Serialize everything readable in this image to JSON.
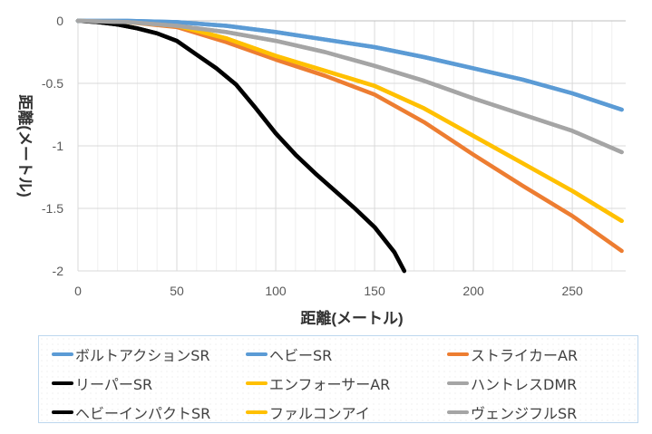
{
  "chart_data": {
    "type": "line",
    "title": "",
    "xlabel": "距離(メートル)",
    "ylabel": "距離(メートル)",
    "xlim": [
      0,
      277
    ],
    "ylim": [
      -2,
      0
    ],
    "xticks": [
      "0",
      "50",
      "100",
      "150",
      "200",
      "250"
    ],
    "yticks": [
      "0",
      "-0.5",
      "-1",
      "-1.5",
      "-2"
    ],
    "grid": true,
    "legend_position": "bottom",
    "series": [
      {
        "name": "ボルトアクションSR",
        "color": "#5b9bd5",
        "x": [
          0,
          25,
          50,
          75,
          100,
          125,
          150,
          175,
          200,
          225,
          250,
          275
        ],
        "y": [
          0,
          0,
          -0.01,
          -0.04,
          -0.09,
          -0.15,
          -0.21,
          -0.29,
          -0.38,
          -0.47,
          -0.58,
          -0.71
        ]
      },
      {
        "name": "ヘビーSR",
        "color": "#5b9bd5",
        "x": [
          0,
          25,
          50,
          75,
          100,
          125,
          150,
          175,
          200,
          225,
          250,
          275
        ],
        "y": [
          0,
          0,
          -0.01,
          -0.04,
          -0.09,
          -0.15,
          -0.21,
          -0.29,
          -0.38,
          -0.47,
          -0.58,
          -0.71
        ]
      },
      {
        "name": "ストライカーAR",
        "color": "#ed7d31",
        "x": [
          0,
          25,
          50,
          75,
          100,
          125,
          150,
          175,
          200,
          225,
          250,
          275
        ],
        "y": [
          0,
          -0.01,
          -0.05,
          -0.17,
          -0.31,
          -0.44,
          -0.59,
          -0.81,
          -1.07,
          -1.32,
          -1.56,
          -1.84
        ]
      },
      {
        "name": "リーパーSR",
        "color": "#000000",
        "x": [
          0,
          10,
          20,
          30,
          40,
          50,
          60,
          70,
          80,
          90,
          100,
          110,
          120,
          130,
          140,
          150,
          160,
          165
        ],
        "y": [
          0,
          -0.01,
          -0.03,
          -0.06,
          -0.1,
          -0.16,
          -0.27,
          -0.38,
          -0.51,
          -0.7,
          -0.9,
          -1.07,
          -1.22,
          -1.36,
          -1.5,
          -1.65,
          -1.85,
          -2.0
        ]
      },
      {
        "name": "エンフォーサーAR",
        "color": "#ffc000",
        "x": [
          0,
          25,
          50,
          75,
          100,
          125,
          150,
          175,
          200,
          225,
          250,
          275
        ],
        "y": [
          0,
          -0.01,
          -0.04,
          -0.14,
          -0.28,
          -0.4,
          -0.52,
          -0.7,
          -0.92,
          -1.14,
          -1.36,
          -1.6
        ]
      },
      {
        "name": "ハントレスDMR",
        "color": "#a5a5a5",
        "x": [
          0,
          25,
          50,
          75,
          100,
          125,
          150,
          175,
          200,
          225,
          250,
          275
        ],
        "y": [
          0,
          -0.01,
          -0.04,
          -0.09,
          -0.16,
          -0.25,
          -0.36,
          -0.48,
          -0.62,
          -0.75,
          -0.88,
          -1.05
        ]
      },
      {
        "name": "ヘビーインパクトSR",
        "color": "#000000",
        "x": [
          0,
          10,
          20,
          30,
          40,
          50,
          60,
          70,
          80,
          90,
          100,
          110,
          120,
          130,
          140,
          150,
          160,
          165
        ],
        "y": [
          0,
          -0.01,
          -0.03,
          -0.06,
          -0.1,
          -0.16,
          -0.27,
          -0.38,
          -0.51,
          -0.7,
          -0.9,
          -1.07,
          -1.22,
          -1.36,
          -1.5,
          -1.65,
          -1.85,
          -2.0
        ]
      },
      {
        "name": "ファルコンアイ",
        "color": "#ffc000",
        "x": [
          0,
          25,
          50,
          75,
          100,
          125,
          150,
          175,
          200,
          225,
          250,
          275
        ],
        "y": [
          0,
          -0.01,
          -0.04,
          -0.14,
          -0.28,
          -0.4,
          -0.52,
          -0.7,
          -0.92,
          -1.14,
          -1.36,
          -1.6
        ]
      },
      {
        "name": "ヴェンジフルSR",
        "color": "#a5a5a5",
        "x": [
          0,
          25,
          50,
          75,
          100,
          125,
          150,
          175,
          200,
          225,
          250,
          275
        ],
        "y": [
          0,
          -0.01,
          -0.04,
          -0.09,
          -0.16,
          -0.25,
          -0.36,
          -0.48,
          -0.62,
          -0.75,
          -0.88,
          -1.05
        ]
      }
    ]
  }
}
